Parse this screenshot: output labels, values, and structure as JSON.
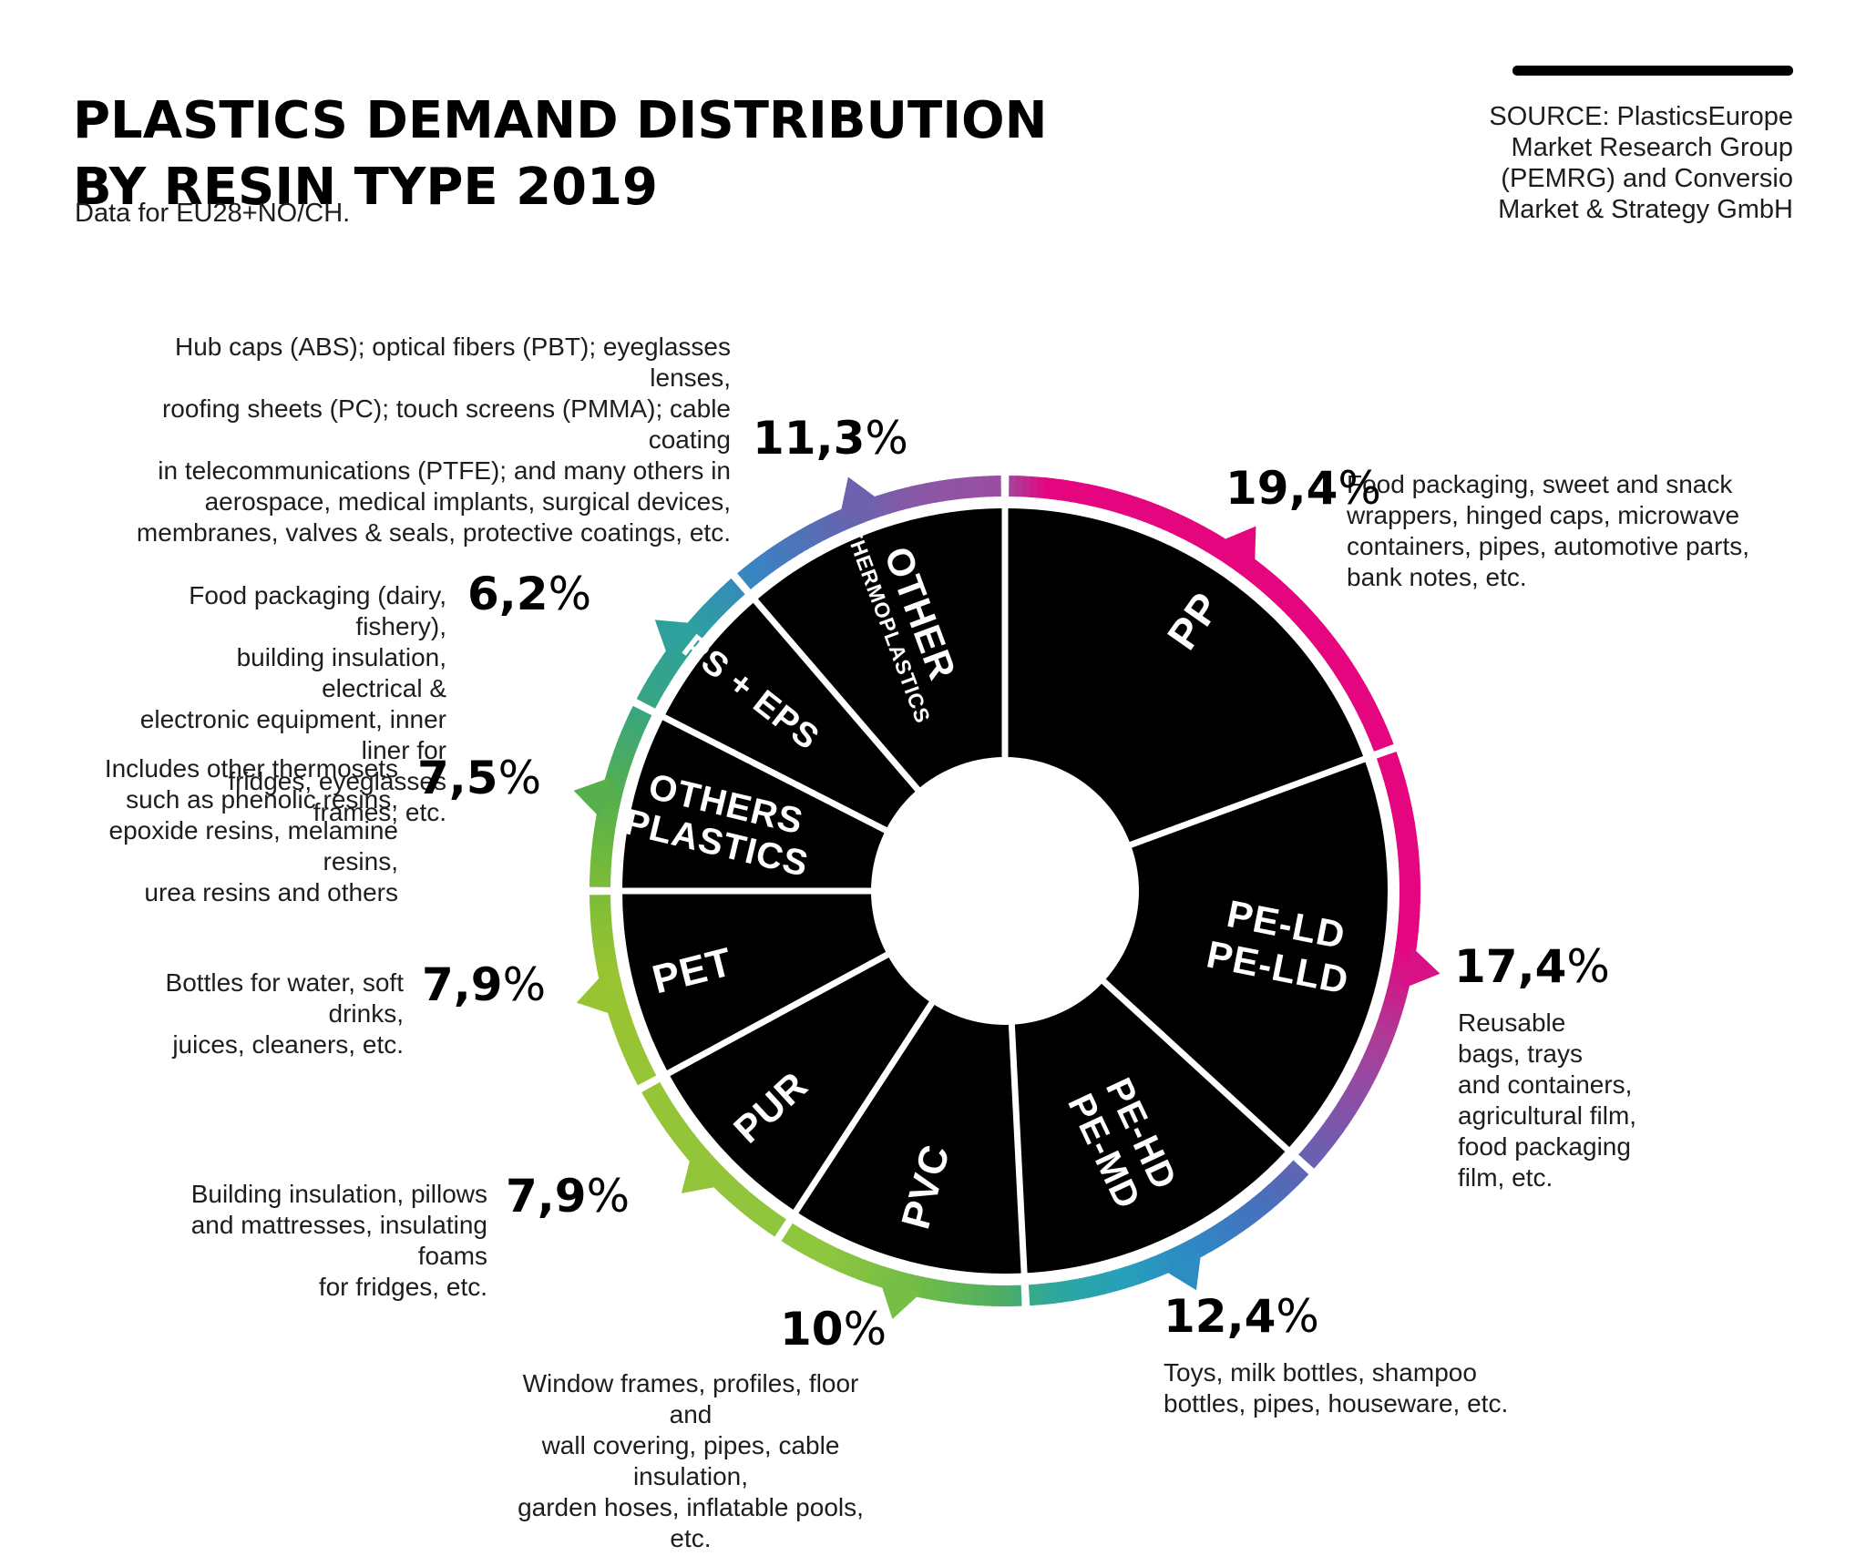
{
  "page": {
    "title_line1": "PLASTICS DEMAND DISTRIBUTION",
    "title_line2": "BY RESIN TYPE 2019",
    "subtitle": "Data for EU28+NO/CH.",
    "source_lines": [
      "SOURCE: PlasticsEurope",
      "Market Research Group",
      "(PEMRG) and Conversio",
      "Market & Strategy GmbH"
    ]
  },
  "chart_data": {
    "type": "pie",
    "title": "Plastics demand distribution by resin type 2019",
    "unit": "%",
    "direction": "clockwise",
    "start_angle_deg": 0,
    "donut": true,
    "total": 100,
    "segments": [
      {
        "name": "PP",
        "label_lines": [
          "PP"
        ],
        "value": 19.4,
        "pct_label": "19,4%",
        "description": "Food packaging, sweet and snack wrappers, hinged caps, microwave containers, pipes, automotive parts, bank notes, etc."
      },
      {
        "name": "PE-LD PE-LLD",
        "label_lines": [
          "PE-LD",
          "PE-LLD"
        ],
        "value": 17.4,
        "pct_label": "17,4%",
        "description": "Reusable bags, trays and containers, agricultural film, food packaging film, etc."
      },
      {
        "name": "PE-HD PE-MD",
        "label_lines": [
          "PE-HD",
          "PE-MD"
        ],
        "value": 12.4,
        "pct_label": "12,4%",
        "description": "Toys, milk bottles, shampoo bottles, pipes, houseware, etc."
      },
      {
        "name": "PVC",
        "label_lines": [
          "PVC"
        ],
        "value": 10,
        "pct_label": "10%",
        "description": "Window frames, profiles, floor and wall covering, pipes, cable insulation, garden hoses, inflatable pools, etc."
      },
      {
        "name": "PUR",
        "label_lines": [
          "PUR"
        ],
        "value": 7.9,
        "pct_label": "7,9%",
        "description": "Building insulation, pillows and mattresses, insulating foams for fridges, etc."
      },
      {
        "name": "PET",
        "label_lines": [
          "PET"
        ],
        "value": 7.9,
        "pct_label": "7,9%",
        "description": "Bottles for water, soft drinks, juices, cleaners, etc."
      },
      {
        "name": "OTHERS PLASTICS",
        "label_lines": [
          "OTHERS",
          "PLASTICS"
        ],
        "value": 7.5,
        "pct_label": "7,5%",
        "description": "Includes other thermosets such as phenolic resins, epoxide resins, melamine resins, urea resins and others"
      },
      {
        "name": "PS + EPS",
        "label_lines": [
          "PS + EPS"
        ],
        "value": 6.2,
        "pct_label": "6,2%",
        "description": "Food packaging (dairy, fishery), building insulation, electrical & electronic equipment, inner liner for fridges, eyeglasses frames, etc."
      },
      {
        "name": "OTHER THERMOPLASTICS",
        "label_lines": [
          "OTHER",
          "THERMOPLASTICS"
        ],
        "value": 11.3,
        "pct_label": "11,3%",
        "description": "Hub caps (ABS); optical fibers (PBT); eyeglasses lenses, roofing sheets (PC); touch screens (PMMA); cable coating in telecommunications (PTFE); and many others in aerospace, medical implants, surgical devices, membranes, valves & seals, protective coatings, etc."
      }
    ],
    "ring_gradient_stops": [
      {
        "a": 0,
        "c": "#9C4DA0"
      },
      {
        "a": 6,
        "c": "#E5057F"
      },
      {
        "a": 98,
        "c": "#E5057F"
      },
      {
        "a": 112,
        "c": "#AB3D98"
      },
      {
        "a": 126,
        "c": "#7A58AB"
      },
      {
        "a": 140,
        "c": "#4A6FBB"
      },
      {
        "a": 152,
        "c": "#2E87C6"
      },
      {
        "a": 163,
        "c": "#27A0BB"
      },
      {
        "a": 173,
        "c": "#2CA69E"
      },
      {
        "a": 181,
        "c": "#4FAE62"
      },
      {
        "a": 193,
        "c": "#72BC47"
      },
      {
        "a": 206,
        "c": "#8DC63F"
      },
      {
        "a": 258,
        "c": "#9AC431"
      },
      {
        "a": 271,
        "c": "#79BC37"
      },
      {
        "a": 284,
        "c": "#55AF4D"
      },
      {
        "a": 297,
        "c": "#38A581"
      },
      {
        "a": 310,
        "c": "#2DA0A0"
      },
      {
        "a": 322,
        "c": "#3884C2"
      },
      {
        "a": 335,
        "c": "#5F68B2"
      },
      {
        "a": 348,
        "c": "#8A57A6"
      },
      {
        "a": 360,
        "c": "#9C4DA0"
      }
    ],
    "colors": {
      "wedge": "#000000",
      "segment_label": "#FFFFFF",
      "background": "#FFFFFF",
      "text": "#1D1D1B"
    }
  },
  "annotations": [
    {
      "segment_index": 8,
      "lines": [
        "Hub caps (ABS); optical fibers (PBT); eyeglasses lenses,",
        "roofing sheets (PC); touch screens (PMMA); cable coating",
        "in telecommunications (PTFE); and many others in",
        "aerospace, medical implants, surgical devices,",
        "membranes, valves & seals, protective coatings, etc."
      ]
    },
    {
      "segment_index": 7,
      "lines": [
        "Food packaging (dairy, fishery),",
        "building insulation, electrical &",
        "electronic equipment, inner liner for",
        "fridges, eyeglasses frames, etc."
      ]
    },
    {
      "segment_index": 6,
      "lines": [
        "Includes other thermosets",
        "such as phenolic resins,",
        "epoxide resins, melamine resins,",
        "urea resins and others"
      ]
    },
    {
      "segment_index": 5,
      "lines": [
        "Bottles for water, soft drinks,",
        "juices, cleaners, etc."
      ]
    },
    {
      "segment_index": 4,
      "lines": [
        "Building insulation, pillows",
        "and mattresses, insulating foams",
        "for fridges, etc."
      ]
    },
    {
      "segment_index": 3,
      "lines": [
        "Window frames, profiles, floor and",
        "wall covering, pipes, cable insulation,",
        "garden hoses, inflatable pools, etc."
      ]
    },
    {
      "segment_index": 2,
      "lines": [
        "Toys, milk bottles, shampoo",
        "bottles, pipes, houseware, etc."
      ]
    },
    {
      "segment_index": 1,
      "lines": [
        "Reusable",
        "bags, trays",
        "and containers,",
        "agricultural film,",
        "food packaging",
        "film, etc."
      ]
    },
    {
      "segment_index": 0,
      "lines": [
        "Food packaging, sweet and snack",
        "wrappers, hinged caps, microwave",
        "containers, pipes, automotive parts,",
        "bank notes, etc."
      ]
    }
  ]
}
